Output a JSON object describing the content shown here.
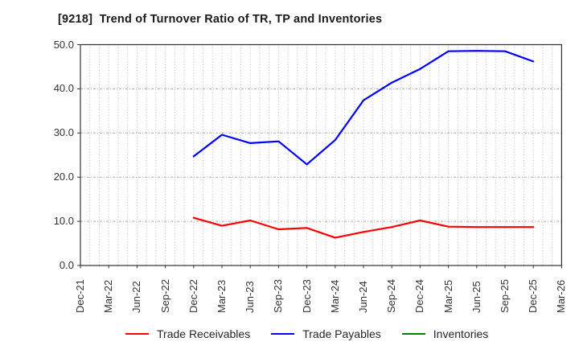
{
  "header": {
    "title": "[9218]  Trend of Turnover Ratio of TR, TP and Inventories"
  },
  "chart_data": {
    "type": "line",
    "title": "[9218]  Trend of Turnover Ratio of TR, TP and Inventories",
    "x_labels": [
      "Dec-21",
      "Mar-22",
      "Jun-22",
      "Sep-22",
      "Dec-22",
      "Mar-23",
      "Jun-23",
      "Sep-23",
      "Dec-23",
      "Mar-24",
      "Jun-24",
      "Sep-24",
      "Dec-24",
      "Mar-25",
      "Jun-25",
      "Sep-25",
      "Dec-25",
      "Mar-26"
    ],
    "x_minor_gridlines": "monthly",
    "ylim": [
      0,
      50
    ],
    "ytick_labels": [
      "0.0",
      "10.0",
      "20.0",
      "30.0",
      "40.0",
      "50.0"
    ],
    "ytick_values": [
      0,
      10,
      20,
      30,
      40,
      50
    ],
    "grid": "dotted",
    "legend_position": "bottom",
    "series": [
      {
        "name": "Trade Receivables",
        "color": "#ff0000",
        "start_index": 4,
        "values": [
          10.8,
          9.0,
          10.2,
          8.2,
          8.5,
          6.3,
          7.6,
          8.7,
          10.2,
          8.8,
          8.7,
          8.7,
          8.7
        ]
      },
      {
        "name": "Trade Payables",
        "color": "#0000ff",
        "start_index": 4,
        "values": [
          24.7,
          29.6,
          27.7,
          28.1,
          22.9,
          28.4,
          37.4,
          41.4,
          44.5,
          48.5,
          48.6,
          48.5,
          46.2
        ]
      },
      {
        "name": "Inventories",
        "color": "#008000",
        "start_index": 4,
        "values": []
      }
    ]
  }
}
